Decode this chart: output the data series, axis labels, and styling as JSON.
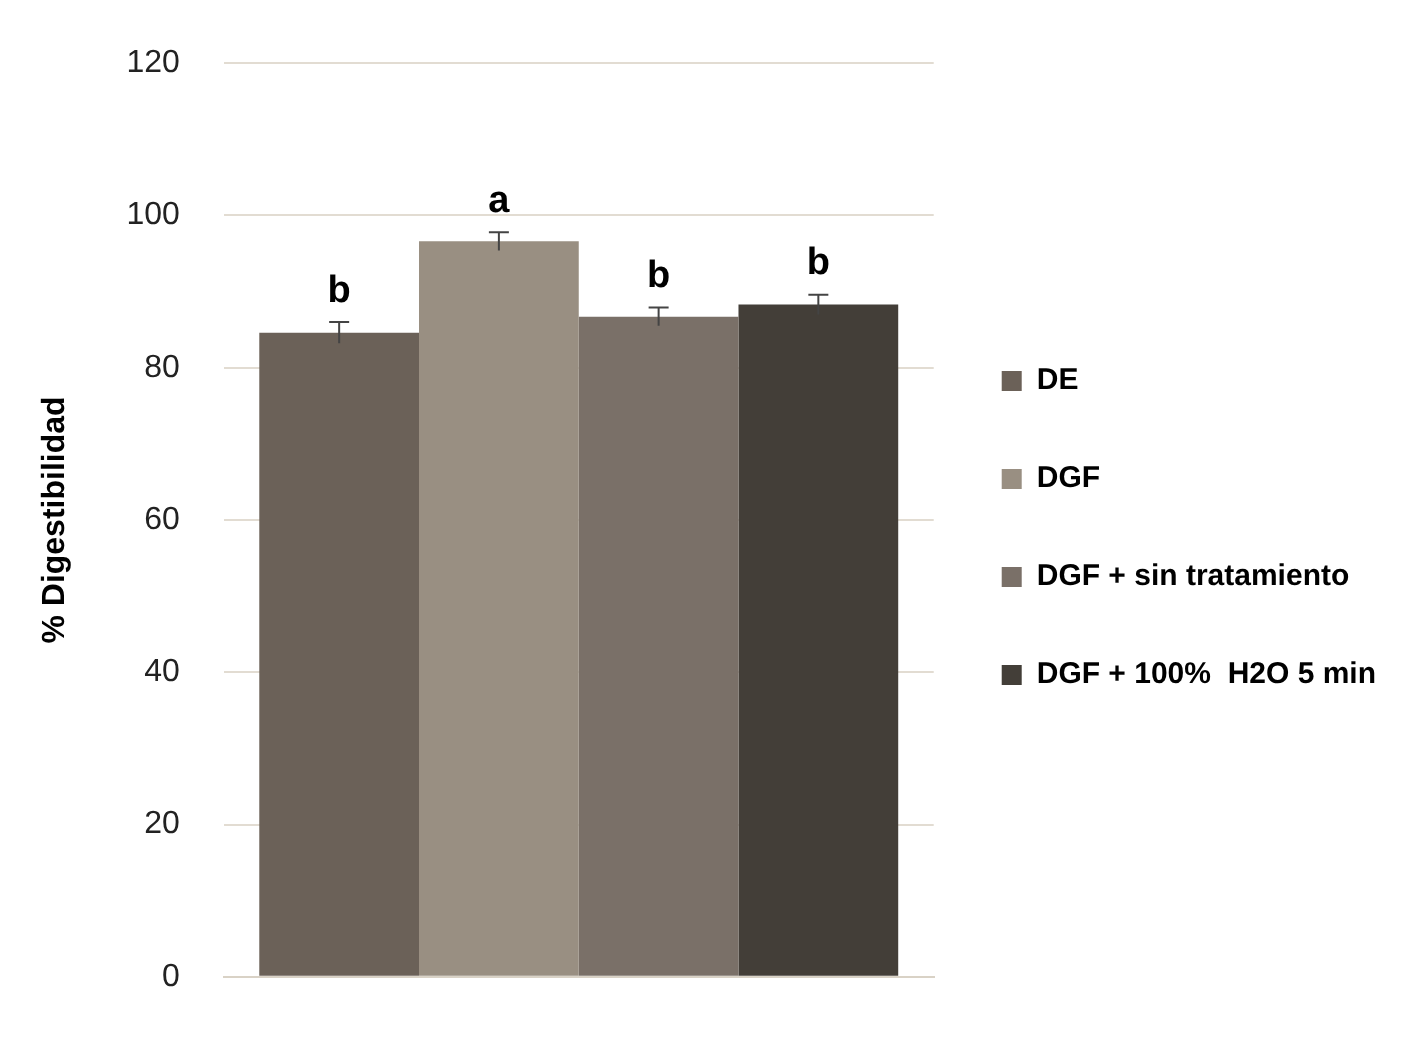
{
  "chart_data": {
    "type": "bar",
    "ylabel": "% Digestibilidad",
    "categories": [
      null
    ],
    "series": [
      {
        "name": "DE",
        "color": "#6b6158",
        "values": [
          84.6
        ],
        "errors": [
          1.4
        ]
      },
      {
        "name": "DGF",
        "color": "#998f82",
        "values": [
          96.6
        ],
        "errors": [
          1.2
        ]
      },
      {
        "name": "DGF + sin tratamiento",
        "color": "#7a7068",
        "values": [
          86.7
        ],
        "errors": [
          1.2
        ]
      },
      {
        "name": "DGF + 100%  H2O 5 min",
        "color": "#433e38",
        "values": [
          88.3
        ],
        "errors": [
          1.3
        ]
      }
    ],
    "annotations": [
      "b",
      "a",
      "b",
      "b"
    ],
    "ylim": [
      0,
      120
    ],
    "yticks": [
      0,
      20,
      40,
      60,
      80,
      100,
      120
    ],
    "grid": "y",
    "legend": "right"
  }
}
